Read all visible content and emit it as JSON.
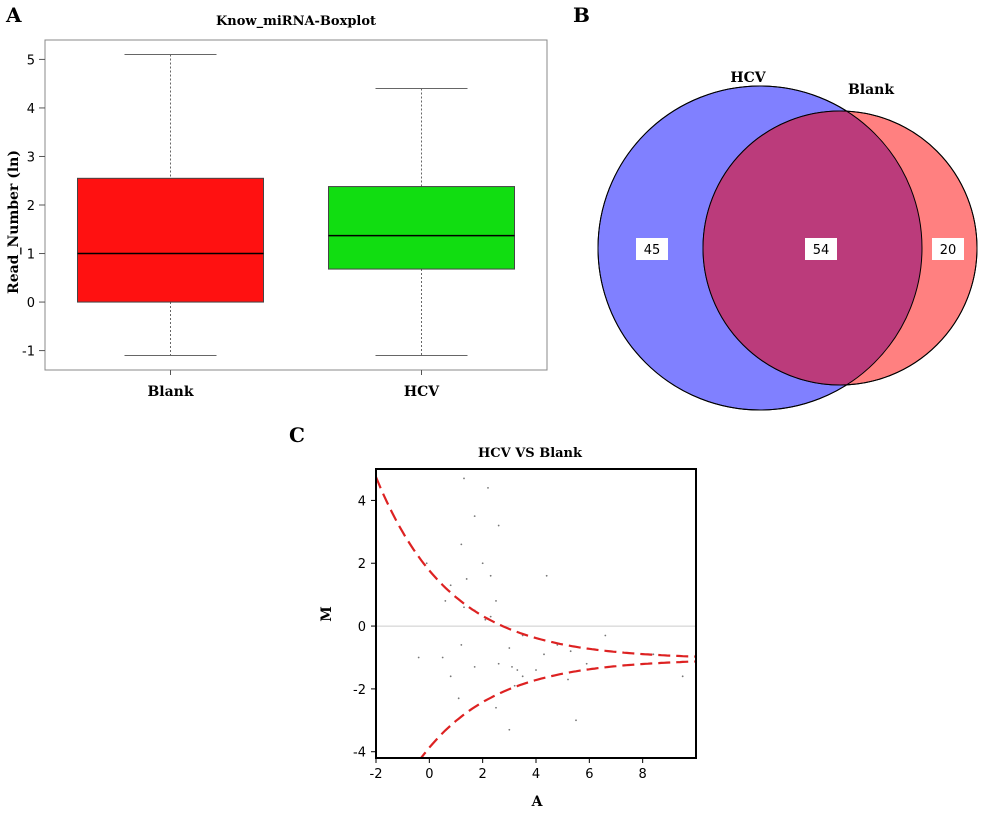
{
  "panels": {
    "a": "A",
    "b": "B",
    "c": "C"
  },
  "chart_data": [
    {
      "type": "box",
      "title": "Know_miRNA-Boxplot",
      "xlabel": "",
      "ylabel": "Read_Number (ln)",
      "ylim": [
        -1.4,
        5.4
      ],
      "yticks": [
        -1,
        0,
        1,
        2,
        3,
        4,
        5
      ],
      "series": [
        {
          "name": "Blank",
          "color": "#ff1111",
          "whisker_low": -1.1,
          "q1": 0.0,
          "median": 1.0,
          "q3": 2.55,
          "whisker_high": 5.1
        },
        {
          "name": "HCV",
          "color": "#11dd11",
          "whisker_low": -1.1,
          "q1": 0.68,
          "median": 1.37,
          "q3": 2.38,
          "whisker_high": 4.4
        }
      ],
      "grid": false
    },
    {
      "type": "venn",
      "sets": [
        {
          "name": "HCV",
          "only": 45,
          "color": "#8080ff"
        },
        {
          "name": "Blank",
          "only": 20,
          "color": "#ff8080"
        }
      ],
      "intersection": 54,
      "intersection_color": "#bb3b7b"
    },
    {
      "type": "scatter",
      "title": "HCV VS Blank",
      "xlabel": "A",
      "ylabel": "M",
      "xlim": [
        -2,
        10
      ],
      "ylim": [
        -4.2,
        5
      ],
      "xticks": [
        -2,
        0,
        2,
        4,
        6,
        8
      ],
      "yticks": [
        -4,
        -2,
        0,
        2,
        4
      ],
      "zero_line": true,
      "curve_color": "#dd2222",
      "points": [
        [
          1.3,
          4.7
        ],
        [
          2.2,
          4.4
        ],
        [
          1.7,
          3.5
        ],
        [
          2.6,
          3.2
        ],
        [
          1.2,
          2.6
        ],
        [
          -0.1,
          2.0
        ],
        [
          2.0,
          2.0
        ],
        [
          2.3,
          1.6
        ],
        [
          4.4,
          1.6
        ],
        [
          1.4,
          1.5
        ],
        [
          0.8,
          1.3
        ],
        [
          0.6,
          0.8
        ],
        [
          2.5,
          0.8
        ],
        [
          1.3,
          0.6
        ],
        [
          1.7,
          0.5
        ],
        [
          2.3,
          0.3
        ],
        [
          2.1,
          0.2
        ],
        [
          3.5,
          -0.3
        ],
        [
          6.6,
          -0.3
        ],
        [
          4.8,
          -0.6
        ],
        [
          1.2,
          -0.6
        ],
        [
          3.0,
          -0.7
        ],
        [
          -0.4,
          -1.0
        ],
        [
          0.5,
          -1.0
        ],
        [
          4.3,
          -0.9
        ],
        [
          5.3,
          -0.8
        ],
        [
          8.4,
          -0.9
        ],
        [
          1.7,
          -1.3
        ],
        [
          2.6,
          -1.2
        ],
        [
          3.1,
          -1.3
        ],
        [
          3.3,
          -1.4
        ],
        [
          3.5,
          -1.6
        ],
        [
          4.0,
          -1.4
        ],
        [
          0.8,
          -1.6
        ],
        [
          5.9,
          -1.2
        ],
        [
          9.5,
          -1.6
        ],
        [
          3.2,
          -1.9
        ],
        [
          5.2,
          -1.7
        ],
        [
          1.1,
          -2.3
        ],
        [
          2.5,
          -2.6
        ],
        [
          5.5,
          -3.0
        ],
        [
          3.0,
          -3.3
        ]
      ]
    }
  ]
}
